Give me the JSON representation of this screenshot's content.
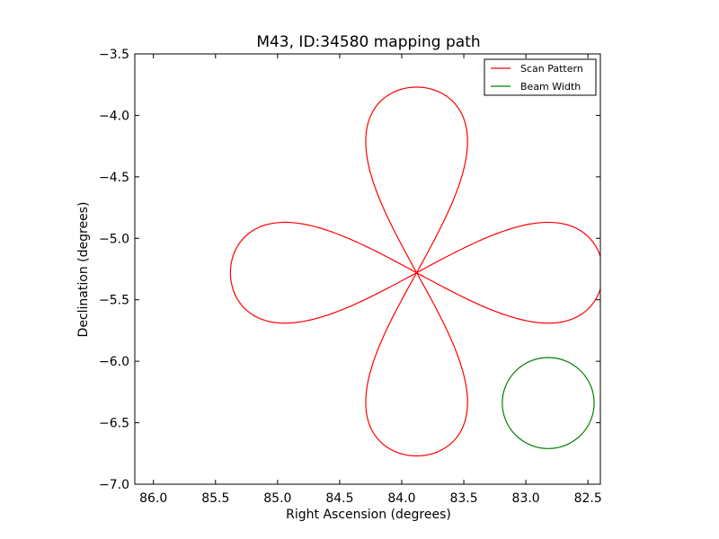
{
  "chart_data": {
    "type": "line",
    "title": "M43, ID:34580 mapping path",
    "xlabel": "Right Ascension (degrees)",
    "ylabel": "Declination (degrees)",
    "xlim": [
      86.15,
      82.4
    ],
    "ylim": [
      -7.0,
      -3.5
    ],
    "x_ticks": [
      86.0,
      85.5,
      85.0,
      84.5,
      84.0,
      83.5,
      83.0,
      82.5
    ],
    "x_tick_labels": [
      "86.0",
      "85.5",
      "85.0",
      "84.5",
      "84.0",
      "83.5",
      "83.0",
      "82.5"
    ],
    "y_ticks": [
      -3.5,
      -4.0,
      -4.5,
      -5.0,
      -5.5,
      -6.0,
      -6.5,
      -7.0
    ],
    "y_tick_labels": [
      "−3.5",
      "−4.0",
      "−4.5",
      "−5.0",
      "−5.5",
      "−6.0",
      "−6.5",
      "−7.0"
    ],
    "grid": false,
    "legend_position": "top-right",
    "series": [
      {
        "name": "Scan Pattern",
        "color": "#ff0000",
        "pattern": "four-petal rosette",
        "center": [
          83.88,
          -5.28
        ],
        "petals": [
          {
            "direction": "north",
            "tip": [
              83.88,
              -3.77
            ],
            "half_width_deg": 0.41
          },
          {
            "direction": "west",
            "tip": [
              85.38,
              -5.28
            ],
            "half_width_deg": 0.41
          },
          {
            "direction": "east",
            "tip": [
              82.38,
              -5.28
            ],
            "half_width_deg": 0.41
          },
          {
            "direction": "south",
            "tip": [
              83.88,
              -6.77
            ],
            "half_width_deg": 0.41
          }
        ]
      },
      {
        "name": "Beam Width",
        "color": "#008000",
        "shape": "circle",
        "center": [
          82.82,
          -6.34
        ],
        "radius_deg": 0.37
      }
    ]
  }
}
